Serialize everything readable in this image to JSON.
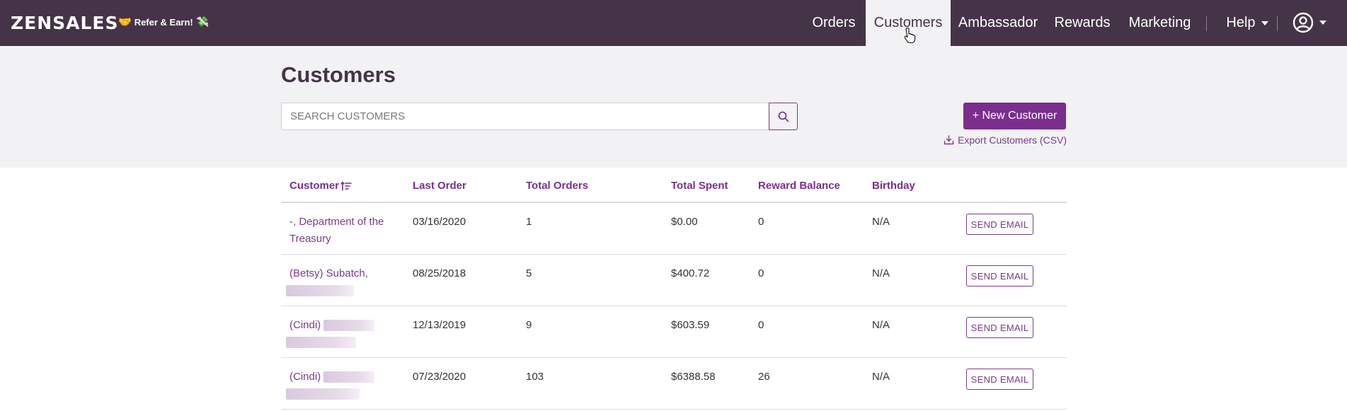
{
  "app": {
    "logo": "ZENSALES",
    "refer_label": "Refer & Earn!"
  },
  "nav": {
    "items": [
      {
        "label": "Orders"
      },
      {
        "label": "Customers",
        "active": true
      },
      {
        "label": "Ambassador"
      },
      {
        "label": "Rewards"
      },
      {
        "label": "Marketing"
      }
    ],
    "help_label": "Help"
  },
  "page": {
    "title": "Customers",
    "search_placeholder": "SEARCH CUSTOMERS",
    "new_customer_label": "+ New Customer",
    "export_label": "Export Customers (CSV)"
  },
  "table": {
    "headers": {
      "customer": "Customer",
      "last_order": "Last Order",
      "total_orders": "Total Orders",
      "total_spent": "Total Spent",
      "reward_balance": "Reward Balance",
      "birthday": "Birthday"
    },
    "rows": [
      {
        "name": "-, Department of the Treasury",
        "last_order": "03/16/2020",
        "total_orders": "1",
        "total_spent": "$0.00",
        "reward_balance": "0",
        "birthday": "N/A",
        "action": "SEND EMAIL"
      },
      {
        "name": "(Betsy) Subatch,",
        "last_order": "08/25/2018",
        "total_orders": "5",
        "total_spent": "$400.72",
        "reward_balance": "0",
        "birthday": "N/A",
        "action": "SEND EMAIL"
      },
      {
        "name": "(Cindi)",
        "last_order": "12/13/2019",
        "total_orders": "9",
        "total_spent": "$603.59",
        "reward_balance": "0",
        "birthday": "N/A",
        "action": "SEND EMAIL"
      },
      {
        "name": "(Cindi)",
        "last_order": "07/23/2020",
        "total_orders": "103",
        "total_spent": "$6388.58",
        "reward_balance": "26",
        "birthday": "N/A",
        "action": "SEND EMAIL"
      }
    ]
  },
  "colors": {
    "navbar": "#453447",
    "accent": "#7b2e8e",
    "panel": "#f2f2f4"
  }
}
